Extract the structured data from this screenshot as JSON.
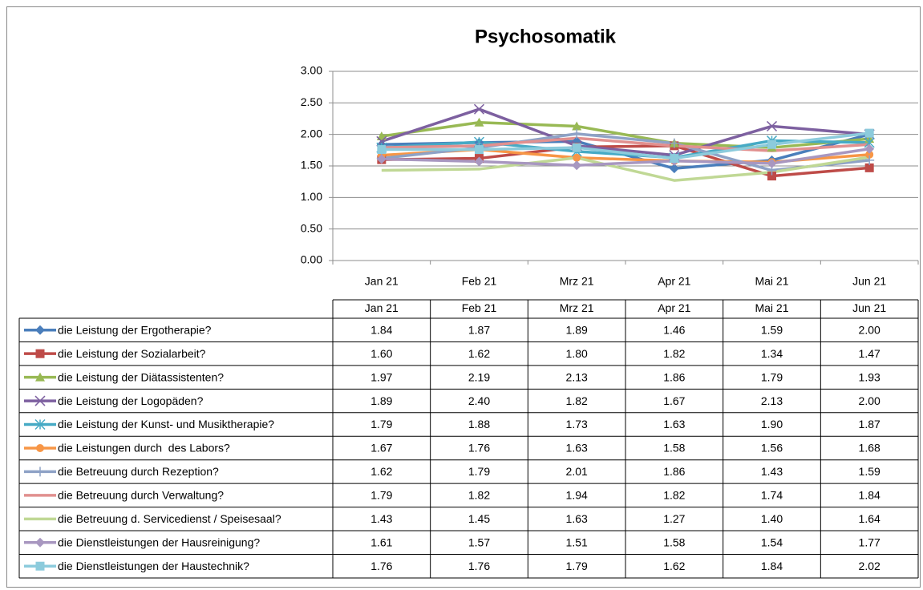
{
  "chart_data": {
    "type": "line",
    "title": "Psychosomatik",
    "categories": [
      "Jan 21",
      "Feb 21",
      "Mrz 21",
      "Apr 21",
      "Mai 21",
      "Jun 21"
    ],
    "ylim": [
      0,
      3
    ],
    "yticks": [
      {
        "value": 0,
        "label": "0.00"
      },
      {
        "value": 0.5,
        "label": "0.50"
      },
      {
        "value": 1,
        "label": "1.00"
      },
      {
        "value": 1.5,
        "label": "1.50"
      },
      {
        "value": 2,
        "label": "2.00"
      },
      {
        "value": 2.5,
        "label": "2.50"
      },
      {
        "value": 3,
        "label": "3.00"
      }
    ],
    "grid": true,
    "series": [
      {
        "name": "die Leistung der Ergotherapie?",
        "color": "#4a7ebb",
        "marker": "diamond",
        "values": [
          1.84,
          1.87,
          1.89,
          1.46,
          1.59,
          2.0
        ],
        "value_labels": [
          "1.84",
          "1.87",
          "1.89",
          "1.46",
          "1.59",
          "2.00"
        ]
      },
      {
        "name": "die Leistung der Sozialarbeit?",
        "color": "#be4b48",
        "marker": "square",
        "values": [
          1.6,
          1.62,
          1.8,
          1.82,
          1.34,
          1.47
        ],
        "value_labels": [
          "1.60",
          "1.62",
          "1.80",
          "1.82",
          "1.34",
          "1.47"
        ]
      },
      {
        "name": "die Leistung der Diätassistenten?",
        "color": "#98b954",
        "marker": "triangle",
        "values": [
          1.97,
          2.19,
          2.13,
          1.86,
          1.79,
          1.93
        ],
        "value_labels": [
          "1.97",
          "2.19",
          "2.13",
          "1.86",
          "1.79",
          "1.93"
        ]
      },
      {
        "name": "die Leistung der Logopäden?",
        "color": "#7d60a0",
        "marker": "x",
        "values": [
          1.89,
          2.4,
          1.82,
          1.67,
          2.13,
          2.0
        ],
        "value_labels": [
          "1.89",
          "2.40",
          "1.82",
          "1.67",
          "2.13",
          "2.00"
        ]
      },
      {
        "name": "die Leistung der Kunst- und Musiktherapie?",
        "color": "#46aac5",
        "marker": "asterisk",
        "values": [
          1.79,
          1.88,
          1.73,
          1.63,
          1.9,
          1.87
        ],
        "value_labels": [
          "1.79",
          "1.88",
          "1.73",
          "1.63",
          "1.90",
          "1.87"
        ]
      },
      {
        "name": "die Leistungen durch  des Labors?",
        "color": "#f79646",
        "marker": "circle",
        "values": [
          1.67,
          1.76,
          1.63,
          1.58,
          1.56,
          1.68
        ],
        "value_labels": [
          "1.67",
          "1.76",
          "1.63",
          "1.58",
          "1.56",
          "1.68"
        ]
      },
      {
        "name": "die Betreuung durch Rezeption?",
        "color": "#8ea2c6",
        "marker": "plus",
        "values": [
          1.62,
          1.79,
          2.01,
          1.86,
          1.43,
          1.59
        ],
        "value_labels": [
          "1.62",
          "1.79",
          "2.01",
          "1.86",
          "1.43",
          "1.59"
        ]
      },
      {
        "name": "die Betreuung durch Verwaltung?",
        "color": "#e1908f",
        "marker": "none",
        "values": [
          1.79,
          1.82,
          1.94,
          1.82,
          1.74,
          1.84
        ],
        "value_labels": [
          "1.79",
          "1.82",
          "1.94",
          "1.82",
          "1.74",
          "1.84"
        ]
      },
      {
        "name": "die Betreuung d. Servicedienst / Speisesaal?",
        "color": "#c0d895",
        "marker": "none",
        "values": [
          1.43,
          1.45,
          1.63,
          1.27,
          1.4,
          1.64
        ],
        "value_labels": [
          "1.43",
          "1.45",
          "1.63",
          "1.27",
          "1.40",
          "1.64"
        ]
      },
      {
        "name": "die Dienstleistungen der Hausreinigung?",
        "color": "#a897c0",
        "marker": "diamond",
        "values": [
          1.61,
          1.57,
          1.51,
          1.58,
          1.54,
          1.77
        ],
        "value_labels": [
          "1.61",
          "1.57",
          "1.51",
          "1.58",
          "1.54",
          "1.77"
        ]
      },
      {
        "name": "die Dienstleistungen der Haustechnik?",
        "color": "#8ccbdc",
        "marker": "square",
        "values": [
          1.76,
          1.76,
          1.79,
          1.62,
          1.84,
          2.02
        ],
        "value_labels": [
          "1.76",
          "1.76",
          "1.79",
          "1.62",
          "1.84",
          "2.02"
        ]
      }
    ]
  }
}
